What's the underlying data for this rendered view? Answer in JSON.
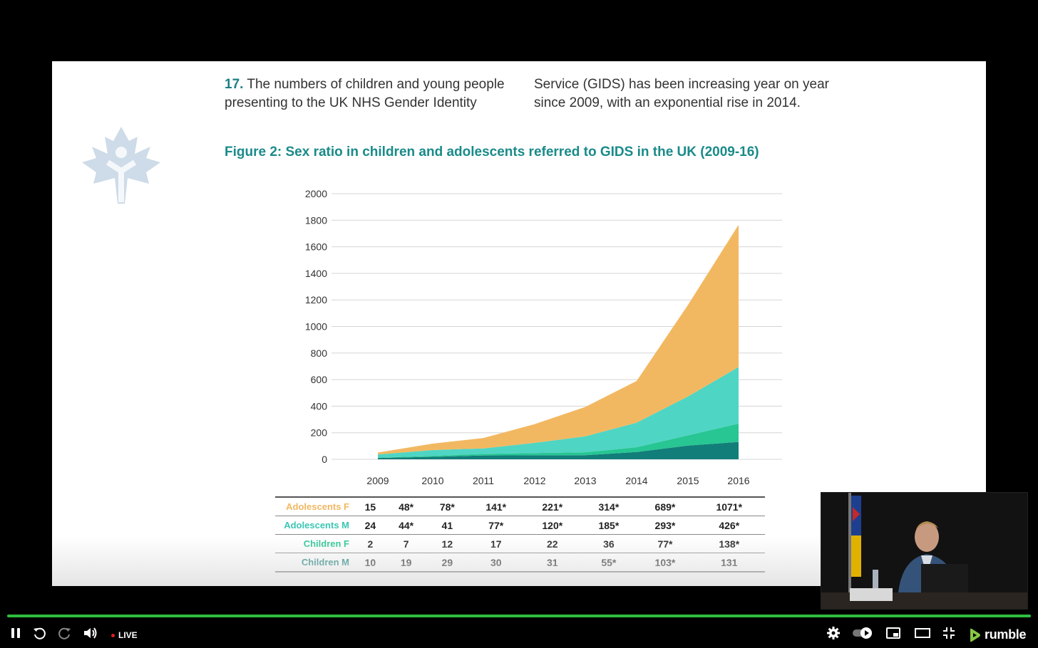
{
  "slide": {
    "paragraph": {
      "number": "17.",
      "left_text": "The numbers of children and young people presenting to the UK NHS Gender Identity",
      "right_text": "Service (GIDS) has been increasing year on year since 2009, with an exponential rise in 2014."
    },
    "figure_title": "Figure 2: Sex ratio in children and adolescents referred to GIDS in the UK (2009-16)"
  },
  "chart_data": {
    "type": "area",
    "stacked": true,
    "x": [
      "2009",
      "2010",
      "2011",
      "2012",
      "2013",
      "2014",
      "2015",
      "2016"
    ],
    "ylim": [
      0,
      2000
    ],
    "yticks": [
      "2000",
      "1800",
      "1600",
      "1400",
      "1200",
      "1000",
      "800",
      "600",
      "400",
      "200",
      "0"
    ],
    "grid": true,
    "series": [
      {
        "name": "Children M",
        "values": [
          10,
          19,
          29,
          30,
          31,
          55,
          103,
          131
        ],
        "color": "#127e79"
      },
      {
        "name": "Children F",
        "values": [
          2,
          7,
          12,
          17,
          22,
          36,
          77,
          138
        ],
        "color": "#27c693"
      },
      {
        "name": "Adolescents M",
        "values": [
          24,
          44,
          41,
          77,
          120,
          185,
          293,
          426
        ],
        "color": "#4fd5c4"
      },
      {
        "name": "Adolescents F",
        "values": [
          15,
          48,
          78,
          141,
          221,
          314,
          689,
          1071
        ],
        "color": "#f2b861"
      }
    ]
  },
  "table": {
    "rows": [
      {
        "label": "Adolescents F",
        "color": "#f2b861",
        "cells": [
          "15",
          "48*",
          "78*",
          "141*",
          "221*",
          "314*",
          "689*",
          "1071*"
        ]
      },
      {
        "label": "Adolescents M",
        "color": "#39c6b3",
        "cells": [
          "24",
          "44*",
          "41",
          "77*",
          "120*",
          "185*",
          "293*",
          "426*"
        ]
      },
      {
        "label": "Children F",
        "color": "#27c693",
        "cells": [
          "2",
          "7",
          "12",
          "17",
          "22",
          "36",
          "77*",
          "138*"
        ]
      },
      {
        "label": "Children M",
        "color": "#127e79",
        "cells": [
          "10",
          "19",
          "29",
          "30",
          "31",
          "55*",
          "103*",
          "131"
        ]
      }
    ]
  },
  "player": {
    "live_label": "LIVE",
    "live_dot_color": "#e01e1e",
    "progress_color": "#2ebd3e",
    "progress_fraction": 1.0,
    "brand": "rumble",
    "brand_color": "#85c742",
    "icons": [
      "pause-icon",
      "replay-icon",
      "forward-icon",
      "volume-icon",
      "settings-icon",
      "autoplay-toggle",
      "picture-in-picture-icon",
      "theater-mode-icon",
      "fullscreen-exit-icon",
      "rumble-logo"
    ]
  }
}
